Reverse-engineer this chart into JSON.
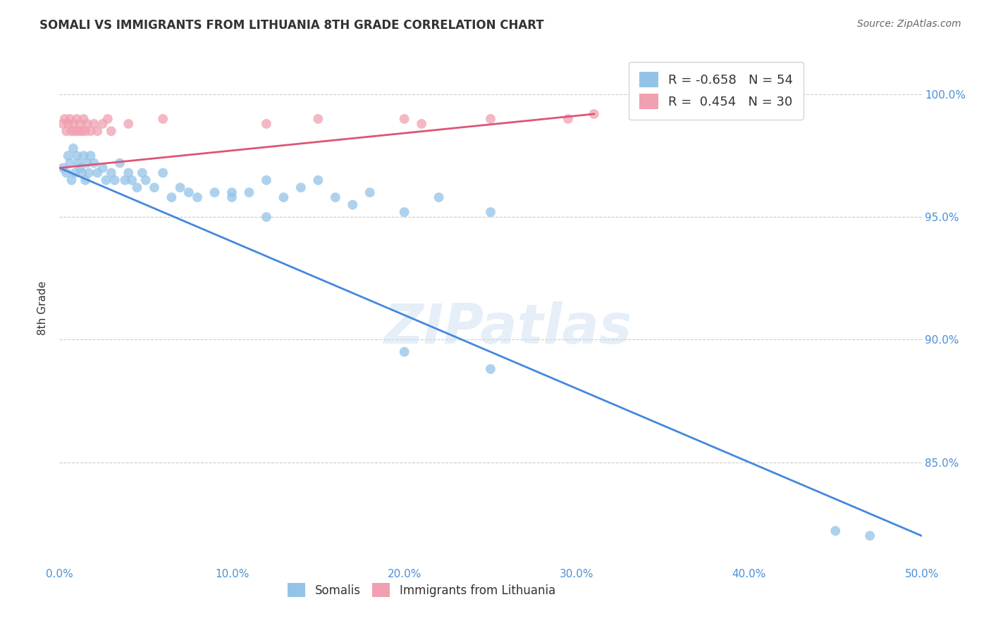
{
  "title": "SOMALI VS IMMIGRANTS FROM LITHUANIA 8TH GRADE CORRELATION CHART",
  "source": "Source: ZipAtlas.com",
  "ylabel": "8th Grade",
  "xmin": 0.0,
  "xmax": 0.5,
  "ymin": 0.808,
  "ymax": 1.018,
  "yticks": [
    0.85,
    0.9,
    0.95,
    1.0
  ],
  "ytick_labels": [
    "85.0%",
    "90.0%",
    "95.0%",
    "100.0%"
  ],
  "xticks": [
    0.0,
    0.1,
    0.2,
    0.3,
    0.4,
    0.5
  ],
  "xtick_labels": [
    "0.0%",
    "10.0%",
    "20.0%",
    "30.0%",
    "40.0%",
    "50.0%"
  ],
  "blue_color": "#93c4e8",
  "pink_color": "#f0a0b0",
  "blue_line_color": "#4488dd",
  "pink_line_color": "#dd5577",
  "legend_blue_R": "-0.658",
  "legend_blue_N": "54",
  "legend_pink_R": "0.454",
  "legend_pink_N": "30",
  "blue_dots_x": [
    0.002,
    0.004,
    0.005,
    0.006,
    0.007,
    0.008,
    0.009,
    0.01,
    0.011,
    0.012,
    0.013,
    0.014,
    0.015,
    0.016,
    0.017,
    0.018,
    0.02,
    0.022,
    0.025,
    0.027,
    0.03,
    0.032,
    0.035,
    0.038,
    0.04,
    0.042,
    0.045,
    0.048,
    0.05,
    0.055,
    0.06,
    0.065,
    0.07,
    0.075,
    0.08,
    0.09,
    0.1,
    0.11,
    0.12,
    0.13,
    0.14,
    0.15,
    0.16,
    0.17,
    0.18,
    0.2,
    0.22,
    0.25,
    0.12,
    0.1,
    0.2,
    0.25,
    0.45,
    0.47
  ],
  "blue_dots_y": [
    0.97,
    0.968,
    0.975,
    0.972,
    0.965,
    0.978,
    0.968,
    0.975,
    0.972,
    0.97,
    0.968,
    0.975,
    0.965,
    0.972,
    0.968,
    0.975,
    0.972,
    0.968,
    0.97,
    0.965,
    0.968,
    0.965,
    0.972,
    0.965,
    0.968,
    0.965,
    0.962,
    0.968,
    0.965,
    0.962,
    0.968,
    0.958,
    0.962,
    0.96,
    0.958,
    0.96,
    0.958,
    0.96,
    0.965,
    0.958,
    0.962,
    0.965,
    0.958,
    0.955,
    0.96,
    0.952,
    0.958,
    0.952,
    0.95,
    0.96,
    0.895,
    0.888,
    0.822,
    0.82
  ],
  "pink_dots_x": [
    0.002,
    0.003,
    0.004,
    0.005,
    0.006,
    0.007,
    0.008,
    0.009,
    0.01,
    0.011,
    0.012,
    0.013,
    0.014,
    0.015,
    0.016,
    0.018,
    0.02,
    0.022,
    0.025,
    0.028,
    0.03,
    0.04,
    0.06,
    0.12,
    0.15,
    0.2,
    0.21,
    0.25,
    0.295,
    0.31
  ],
  "pink_dots_y": [
    0.988,
    0.99,
    0.985,
    0.988,
    0.99,
    0.985,
    0.988,
    0.985,
    0.99,
    0.985,
    0.988,
    0.985,
    0.99,
    0.985,
    0.988,
    0.985,
    0.988,
    0.985,
    0.988,
    0.99,
    0.985,
    0.988,
    0.99,
    0.988,
    0.99,
    0.99,
    0.988,
    0.99,
    0.99,
    0.992
  ],
  "watermark_text": "ZIPatlas",
  "background_color": "#ffffff",
  "grid_color": "#cccccc"
}
